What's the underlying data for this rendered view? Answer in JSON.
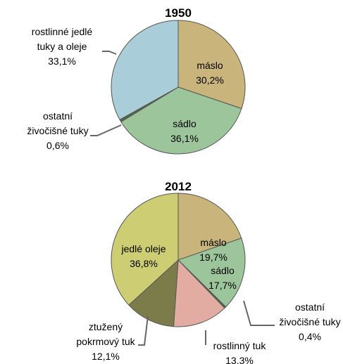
{
  "chart_data": [
    {
      "type": "pie",
      "title": "1950",
      "categories": [
        "máslo",
        "sádlo",
        "ostatní\nživočišné tuky",
        "rostlinné jedlé\ntuky a oleje"
      ],
      "values": [
        30.2,
        36.1,
        0.6,
        33.1
      ],
      "value_labels": [
        "30,2%",
        "36,1%",
        "0,6%",
        "33,1%"
      ],
      "colors": [
        "#c9b57c",
        "#9cc59b",
        "#4f6b4a",
        "#a9cdd9"
      ]
    },
    {
      "type": "pie",
      "title": "2012",
      "categories": [
        "máslo",
        "sádlo",
        "ostatní\nživočišné tuky",
        "rostlinný tuk",
        "ztužený\npokrmový tuk",
        "jedlé oleje"
      ],
      "values": [
        19.7,
        17.7,
        0.4,
        13.3,
        12.1,
        36.8
      ],
      "value_labels": [
        "19,7%",
        "17,7%",
        "0,4%",
        "13,3%",
        "12,1%",
        "36,8%"
      ],
      "colors": [
        "#c9b57c",
        "#9cc59b",
        "#4f6b4a",
        "#e2aca2",
        "#7c7c4a",
        "#cdcd74"
      ]
    }
  ]
}
